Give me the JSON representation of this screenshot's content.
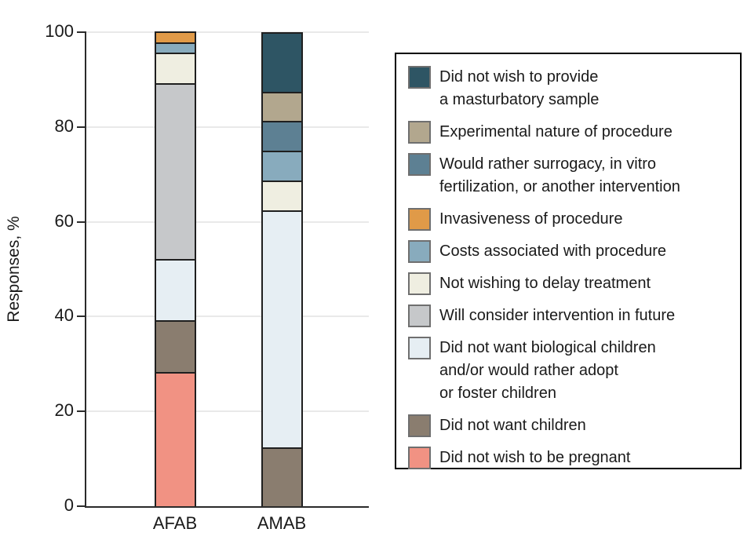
{
  "figure": {
    "background": "#ffffff"
  },
  "chart_data": {
    "type": "stacked-bar",
    "title": "",
    "ylabel": "Responses, %",
    "xlabel": "",
    "ylim": [
      0,
      100
    ],
    "yticks": [
      0,
      20,
      40,
      60,
      80,
      100
    ],
    "grid": "horizontal",
    "legend_position": "right",
    "categories": [
      "AFAB",
      "AMAB"
    ],
    "stacking_note": "segments stack bottom-to-top in reverse legend order",
    "series": [
      {
        "name": "Did not wish to provide a masturbatory sample",
        "label_lines": [
          "Did not wish to provide",
          "a masturbatory sample"
        ],
        "color": "#2e5564",
        "values": [
          0,
          12.5
        ]
      },
      {
        "name": "Experimental nature of procedure",
        "label_lines": [
          "Experimental nature of procedure"
        ],
        "color": "#b2a78e",
        "values": [
          0,
          6.25
        ]
      },
      {
        "name": "Would rather surrogacy, in vitro fertilization, or another intervention",
        "label_lines": [
          "Would rather surrogacy, in vitro",
          "fertilization, or another intervention"
        ],
        "color": "#5d8093",
        "values": [
          0,
          6.25
        ]
      },
      {
        "name": "Invasiveness of procedure",
        "label_lines": [
          "Invasiveness of procedure"
        ],
        "color": "#e09a48",
        "values": [
          2.2,
          0
        ]
      },
      {
        "name": "Costs associated with procedure",
        "label_lines": [
          "Costs associated with procedure"
        ],
        "color": "#88abbd",
        "values": [
          2.2,
          6.25
        ]
      },
      {
        "name": "Not wishing to delay treatment",
        "label_lines": [
          "Not wishing to delay treatment"
        ],
        "color": "#efeee1",
        "values": [
          6.5,
          6.25
        ]
      },
      {
        "name": "Will consider intervention in future",
        "label_lines": [
          "Will consider intervention in future"
        ],
        "color": "#c6c8ca",
        "values": [
          37.0,
          0
        ]
      },
      {
        "name": "Did not want biological children and/or would rather adopt or foster children",
        "label_lines": [
          "Did not want biological children",
          "and/or would rather adopt",
          "or foster children"
        ],
        "color": "#e6eef3",
        "values": [
          13.0,
          50.0
        ]
      },
      {
        "name": "Did not want children",
        "label_lines": [
          "Did not want children"
        ],
        "color": "#8a7d6f",
        "values": [
          10.9,
          12.5
        ]
      },
      {
        "name": "Did not wish to be pregnant",
        "label_lines": [
          "Did not wish to be pregnant"
        ],
        "color": "#f19283",
        "values": [
          28.3,
          0
        ]
      }
    ],
    "colors": {
      "axis": "#2b2b2b",
      "gridline": "#e9e9e9",
      "segment_border": "#1f1f1f",
      "legend_border": "#000000",
      "swatch_border": "#6f6f6f",
      "text": "#1a1a1a"
    }
  }
}
